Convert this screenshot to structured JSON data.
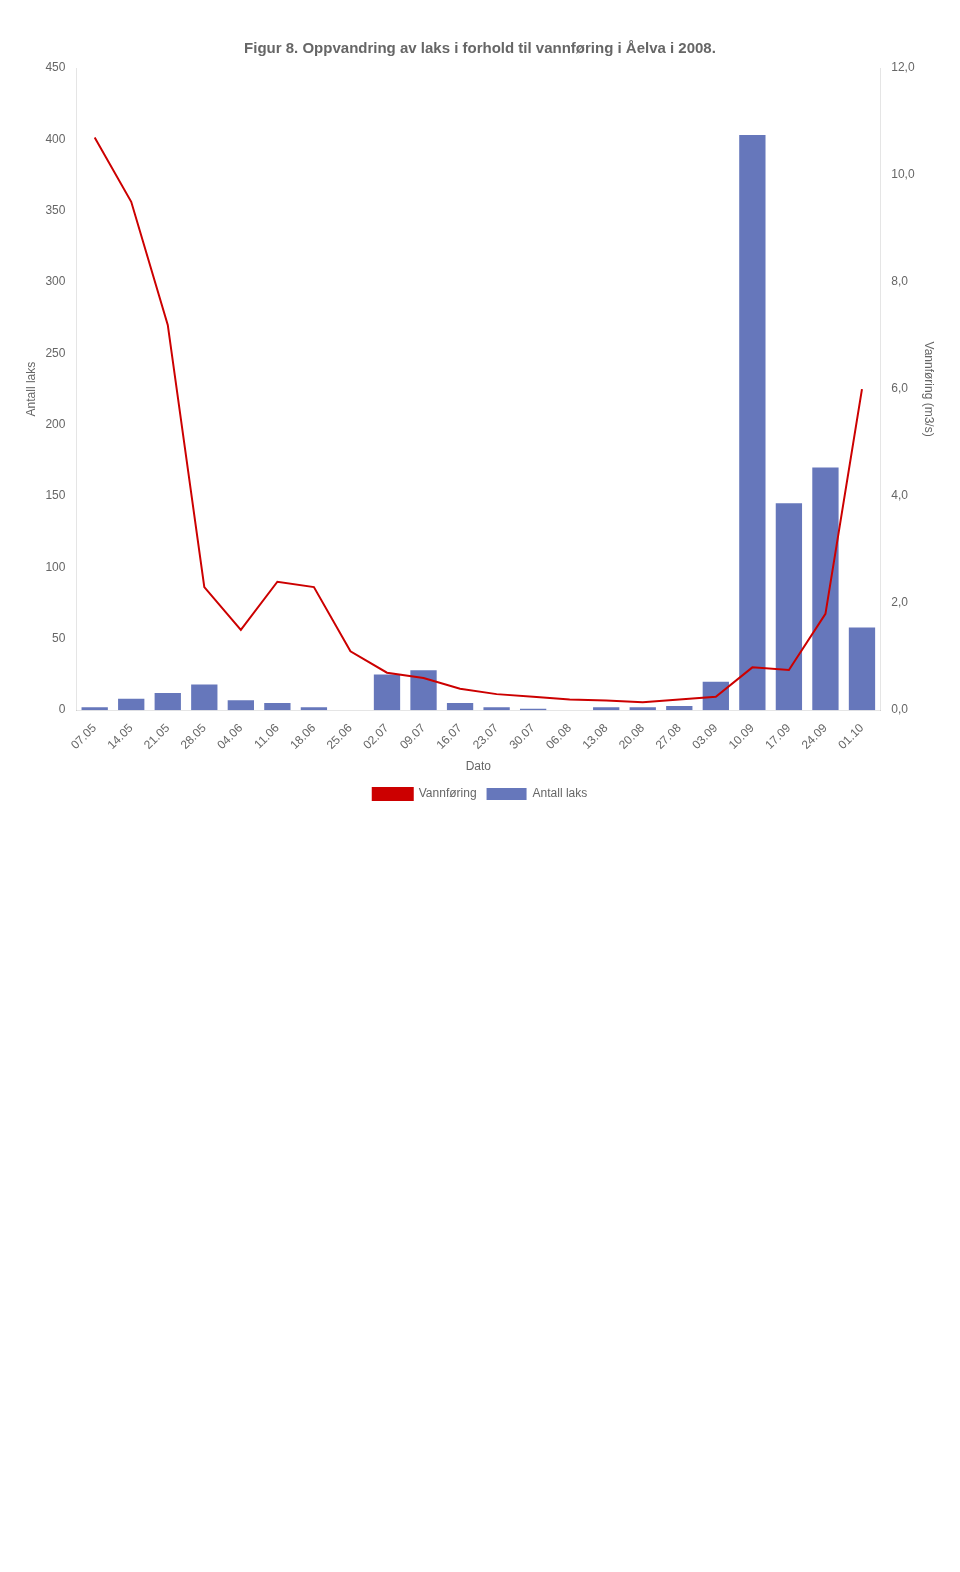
{
  "chart_data": {
    "type": "bar",
    "title": "Figur 8. Oppvandring av laks i forhold til vannføring i Åelva i 2008.",
    "xlabel": "Dato",
    "ylabel": "Antall laks",
    "y2label": "Vannføring (m3/s)",
    "categories": [
      "07.05",
      "14.05",
      "21.05",
      "28.05",
      "04.06",
      "11.06",
      "18.06",
      "25.06",
      "02.07",
      "09.07",
      "16.07",
      "23.07",
      "30.07",
      "06.08",
      "13.08",
      "20.08",
      "27.08",
      "03.09",
      "10.09",
      "17.09",
      "24.09",
      "01.10"
    ],
    "series": [
      {
        "name": "Antall laks",
        "type": "bar",
        "color": "#6677bb",
        "values": [
          2,
          8,
          12,
          18,
          7,
          5,
          2,
          0,
          25,
          28,
          5,
          2,
          1,
          0,
          2,
          2,
          3,
          20,
          403,
          145,
          170,
          58
        ]
      },
      {
        "name": "Vannføring",
        "type": "line",
        "color": "#cc0000",
        "axis": "y2",
        "values": [
          10.7,
          9.5,
          7.2,
          2.3,
          1.5,
          2.4,
          2.3,
          1.1,
          0.7,
          0.6,
          0.4,
          0.3,
          0.25,
          0.2,
          0.18,
          0.15,
          0.2,
          0.25,
          0.8,
          0.75,
          1.8,
          6.0
        ]
      }
    ],
    "ylim": [
      0,
      450
    ],
    "yticks": [
      0,
      50,
      100,
      150,
      200,
      250,
      300,
      350,
      400,
      450
    ],
    "y2lim": [
      0,
      12.0
    ],
    "y2ticks": [
      {
        "value": 0.0,
        "label": "0,0"
      },
      {
        "value": 2.0,
        "label": "2,0"
      },
      {
        "value": 4.0,
        "label": "4,0"
      },
      {
        "value": 6.0,
        "label": "6,0"
      },
      {
        "value": 8.0,
        "label": "8,0"
      },
      {
        "value": 10.0,
        "label": "10,0"
      },
      {
        "value": 12.0,
        "label": "12,0"
      }
    ],
    "grid": false,
    "legend": "bottom"
  }
}
